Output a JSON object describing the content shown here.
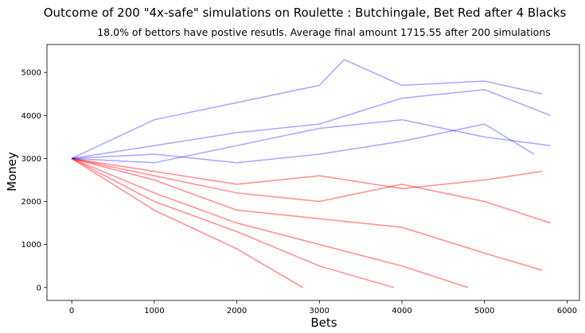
{
  "chart_data": {
    "type": "line",
    "title": "Outcome of 200 \"4x-safe\" simulations on Roulette : Butchingale, Bet Red after 4 Blacks",
    "subtitle": "18.0% of bettors have postive resutls. Average final amount 1715.55 after 200 simulations",
    "xlabel": "Bets",
    "ylabel": "Money",
    "xlim": [
      -300,
      6150
    ],
    "ylim": [
      -300,
      5650
    ],
    "xticks": [
      0,
      1000,
      2000,
      3000,
      4000,
      5000,
      6000
    ],
    "yticks": [
      0,
      1000,
      2000,
      3000,
      4000,
      5000
    ],
    "grid": false,
    "legend": "none",
    "num_simulations": 200,
    "start_amount": 3000,
    "positive_fraction": 0.18,
    "average_final": 1715.55,
    "max_bets": 5800,
    "series_colors": {
      "positive": "#0000ff",
      "negative": "#ff0000"
    },
    "series": [
      {
        "outcome": "positive",
        "x": [
          0,
          1000,
          2000,
          3000,
          3300,
          4000,
          5000,
          5700
        ],
        "y": [
          3000,
          3900,
          4300,
          4700,
          5300,
          4700,
          4800,
          4500
        ]
      },
      {
        "outcome": "positive",
        "x": [
          0,
          1000,
          2000,
          3000,
          4000,
          5000,
          5800
        ],
        "y": [
          3000,
          3300,
          3600,
          3800,
          4400,
          4600,
          4000
        ]
      },
      {
        "outcome": "positive",
        "x": [
          0,
          1000,
          2000,
          3000,
          4000,
          5000,
          5800
        ],
        "y": [
          3000,
          2900,
          3300,
          3700,
          3900,
          3500,
          3300
        ]
      },
      {
        "outcome": "positive",
        "x": [
          0,
          1000,
          2000,
          3000,
          4000,
          5000,
          5600
        ],
        "y": [
          3000,
          3100,
          2900,
          3100,
          3400,
          3800,
          3100
        ]
      },
      {
        "outcome": "negative",
        "x": [
          0,
          1000,
          2000,
          3000,
          4000,
          5000,
          5700
        ],
        "y": [
          3000,
          2700,
          2400,
          2600,
          2300,
          2500,
          2700
        ]
      },
      {
        "outcome": "negative",
        "x": [
          0,
          1000,
          2000,
          3000,
          4000,
          5000,
          5800
        ],
        "y": [
          3000,
          2600,
          2200,
          2000,
          2400,
          2000,
          1500
        ]
      },
      {
        "outcome": "negative",
        "x": [
          0,
          1000,
          2000,
          3000,
          4000,
          5000,
          5700
        ],
        "y": [
          3000,
          2500,
          1800,
          1600,
          1400,
          800,
          400
        ]
      },
      {
        "outcome": "negative",
        "x": [
          0,
          1000,
          2000,
          3000,
          4000,
          4800
        ],
        "y": [
          3000,
          2200,
          1500,
          1000,
          500,
          0
        ]
      },
      {
        "outcome": "negative",
        "x": [
          0,
          1000,
          2000,
          3000,
          3900
        ],
        "y": [
          3000,
          2000,
          1300,
          500,
          0
        ]
      },
      {
        "outcome": "negative",
        "x": [
          0,
          1000,
          2000,
          2800
        ],
        "y": [
          3000,
          1800,
          900,
          0
        ]
      }
    ]
  }
}
